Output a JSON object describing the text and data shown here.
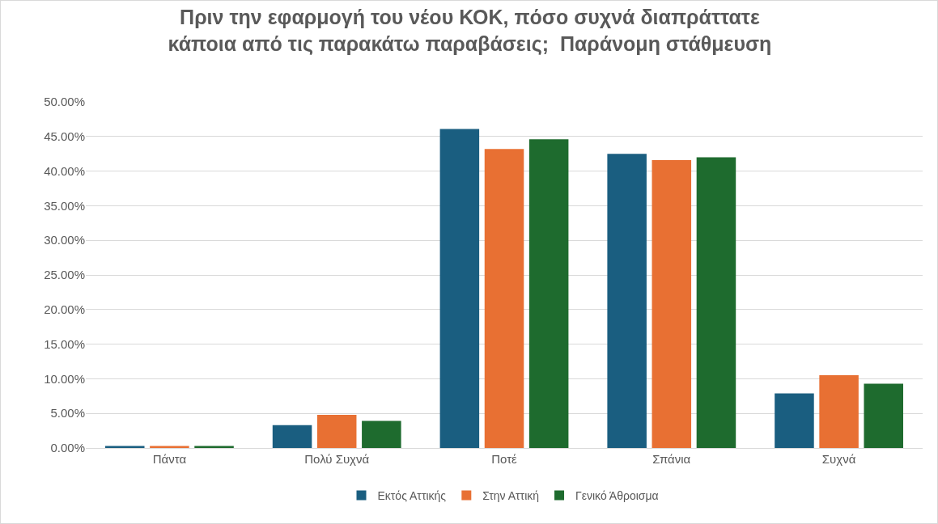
{
  "chart_data": {
    "type": "bar",
    "title": "Πριν την εφαρμογή του νέου ΚΟΚ, πόσο συχνά διαπράττατε κάποια από τις παρακάτω παραβάσεις;  Παράνομη στάθμευση",
    "categories": [
      "Πάντα",
      "Πολύ Συχνά",
      "Ποτέ",
      "Σπάνια",
      "Συχνά"
    ],
    "series": [
      {
        "name": "Εκτός Αττικής",
        "color": "#1a5e80",
        "values": [
          0.3,
          3.3,
          46.1,
          42.5,
          7.9
        ]
      },
      {
        "name": "Στην Αττική",
        "color": "#e87033",
        "values": [
          0.3,
          4.8,
          43.2,
          41.6,
          10.5
        ]
      },
      {
        "name": "Γενικό Άθροισμα",
        "color": "#1e6b2e",
        "values": [
          0.3,
          3.9,
          44.6,
          42.0,
          9.3
        ]
      }
    ],
    "ylim": [
      0,
      50
    ],
    "yticks": [
      {
        "value": 0,
        "label": "0.00%"
      },
      {
        "value": 5,
        "label": "5.00%"
      },
      {
        "value": 10,
        "label": "10.00%"
      },
      {
        "value": 15,
        "label": "15.00%"
      },
      {
        "value": 20,
        "label": "20.00%"
      },
      {
        "value": 25,
        "label": "25.00%"
      },
      {
        "value": 30,
        "label": "30.00%"
      },
      {
        "value": 35,
        "label": "35.00%"
      },
      {
        "value": 40,
        "label": "40.00%"
      },
      {
        "value": 45,
        "label": "45.00%"
      },
      {
        "value": 50,
        "label": "50.00%"
      }
    ],
    "grid": "y",
    "legend": "bottom"
  }
}
